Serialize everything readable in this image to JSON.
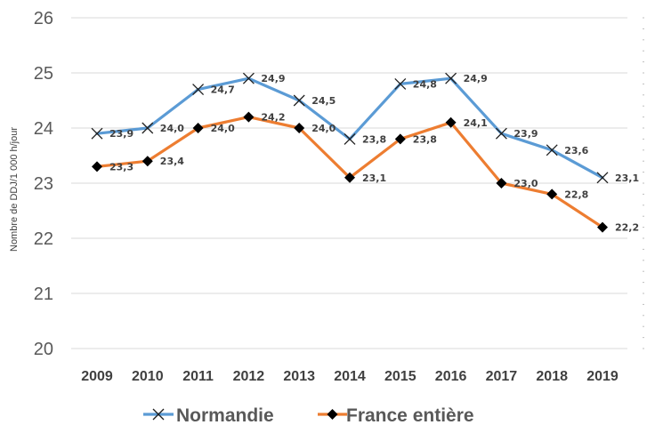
{
  "chart_data": {
    "type": "line",
    "ylabel": "Nombre de DDJ/1 000 h/jour",
    "xlabel": "",
    "title": "",
    "categories": [
      "2009",
      "2010",
      "2011",
      "2012",
      "2013",
      "2014",
      "2015",
      "2016",
      "2017",
      "2018",
      "2019"
    ],
    "ylim": [
      20,
      26
    ],
    "yticks": [
      "20",
      "21",
      "22",
      "23",
      "24",
      "25",
      "26"
    ],
    "grid": true,
    "legend": "bottom",
    "series": [
      {
        "name": "Normandie",
        "color": "#5b9bd5",
        "marker": "x",
        "values": [
          23.9,
          24.0,
          24.7,
          24.9,
          24.5,
          23.8,
          24.8,
          24.9,
          23.9,
          23.6,
          23.1
        ],
        "labels": [
          "23,9",
          "24,0",
          "24,7",
          "24,9",
          "24,5",
          "23,8",
          "24,8",
          "24,9",
          "23,9",
          "23,6",
          "23,1"
        ]
      },
      {
        "name": "France entière",
        "color": "#ed7d31",
        "marker": "diamond",
        "values": [
          23.3,
          23.4,
          24.0,
          24.2,
          24.0,
          23.1,
          23.8,
          24.1,
          23.0,
          22.8,
          22.2
        ],
        "labels": [
          "23,3",
          "23,4",
          "24,0",
          "24,2",
          "24,0",
          "23,1",
          "23,8",
          "24,1",
          "23,0",
          "22,8",
          "22,2"
        ]
      }
    ]
  }
}
